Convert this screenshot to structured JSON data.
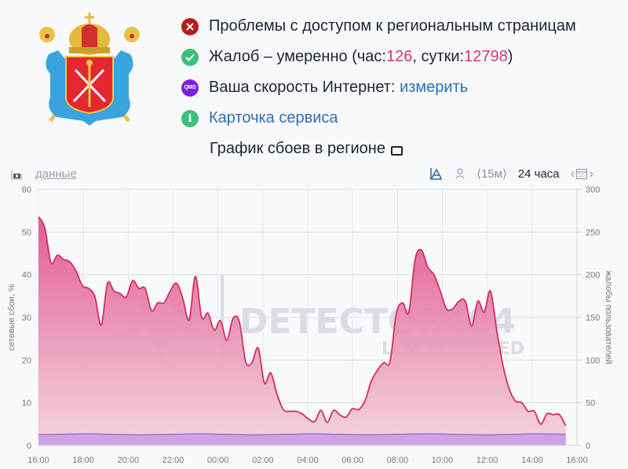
{
  "emblem": {
    "name": "Saint Petersburg coat of arms",
    "icon": "coat-of-arms"
  },
  "status": [
    {
      "icon": "error-icon",
      "text": "Проблемы с доступом к региональным страницам"
    },
    {
      "icon": "check-icon",
      "prefix": "Жалоб – умеренно (час: ",
      "hour_value": "126",
      "mid": ", сутки: ",
      "day_value": "12798",
      "suffix": ")"
    },
    {
      "icon": "qms-icon",
      "icon_text": "QMS",
      "text": "Ваша скорость Интернет: ",
      "link": "измерить"
    },
    {
      "icon": "info-icon",
      "icon_text": "i",
      "link": "Карточка сервиса"
    },
    {
      "text": "График сбоев в регионе",
      "icon": "monitor-icon"
    }
  ],
  "toolbar": {
    "data_link": "данные",
    "interval": "⟨15м⟩",
    "period": "24 часа",
    "prev": "‹",
    "next": "›"
  },
  "colors": {
    "line": "#d0305f",
    "fill_top": "#e0508a",
    "fill_bottom": "#f4d2de",
    "baseline_fill": "#c79be6",
    "baseline_line": "#a46ad8",
    "error": "#b71c1c",
    "ok": "#3ec07d",
    "qms": "#7b1fe6",
    "link": "#2f6db5",
    "number": "#d23a6a"
  },
  "watermark": {
    "title": "DETECTOR404",
    "subtitle": "LLM POWERED"
  },
  "chart_data": {
    "type": "area",
    "title": "График сбоев в регионе",
    "xlabel": "",
    "ylabel": "сетевые сбои, %",
    "y2label": "жалобы пользователей",
    "x_ticks": [
      "16:00",
      "18:00",
      "20:00",
      "22:00",
      "00:00",
      "02:00",
      "04:00",
      "06:00",
      "08:00",
      "10:00",
      "12:00",
      "14:00",
      "16:00"
    ],
    "y_ticks": [
      0,
      10,
      20,
      30,
      40,
      50,
      60
    ],
    "y2_ticks": [
      0,
      50,
      100,
      150,
      200,
      250,
      300
    ],
    "ylim": [
      0,
      60
    ],
    "y2lim": [
      0,
      300
    ],
    "grid": true,
    "interval_minutes": 15,
    "series": [
      {
        "name": "жалобы пользователей",
        "axis": "right",
        "start": "16:00",
        "values": [
          268,
          255,
          214,
          223,
          218,
          215,
          204,
          187,
          184,
          174,
          141,
          190,
          181,
          178,
          174,
          193,
          184,
          184,
          158,
          167,
          167,
          181,
          190,
          172,
          147,
          198,
          150,
          155,
          135,
          146,
          123,
          149,
          145,
          98,
          97,
          114,
          73,
          85,
          60,
          42,
          40,
          40,
          37,
          31,
          28,
          41,
          27,
          41,
          36,
          33,
          43,
          42,
          52,
          75,
          88,
          97,
          98,
          154,
          167,
          156,
          218,
          229,
          209,
          200,
          181,
          160,
          160,
          169,
          169,
          140,
          169,
          156,
          181,
          135,
          94,
          66,
          52,
          50,
          40,
          40,
          25,
          37,
          36,
          36,
          23
        ]
      },
      {
        "name": "сетевые сбои, %",
        "axis": "left",
        "start": "16:00",
        "values_constant_approx": 2.6
      }
    ]
  }
}
